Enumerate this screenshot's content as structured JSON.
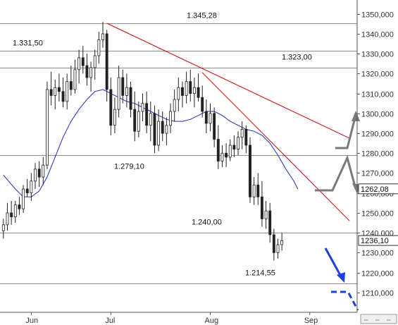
{
  "chart_data": {
    "type": "candlestick",
    "title": "",
    "xlabel": "",
    "ylabel": "",
    "ylim": [
      1200,
      1357
    ],
    "y_ticks": [
      1210,
      1220,
      1230,
      1240,
      1250,
      1260,
      1270,
      1280,
      1290,
      1300,
      1310,
      1320,
      1330,
      1340,
      1350
    ],
    "y_tick_labels": [
      "1210,000",
      "1220,000",
      "1230,000",
      "1240,000",
      "1250,000",
      "1260,000",
      "1270,000",
      "1280,000",
      "1290,000",
      "1300,000",
      "1310,000",
      "1320,000",
      "1330,000",
      "1340,000",
      "1350,000"
    ],
    "x_tick_labels": [
      "Jun",
      "Jul",
      "Aug",
      "Sep"
    ],
    "x_tick_positions": [
      7,
      27,
      52,
      77
    ],
    "grid": "horizontal levels only",
    "levels": [
      {
        "value": 1345.28,
        "label": "1.345,28"
      },
      {
        "value": 1331.5,
        "label": "1.331,50"
      },
      {
        "value": 1323.0,
        "label": "1.323,00"
      },
      {
        "value": 1279.1,
        "label": "1.279,10"
      },
      {
        "value": 1240.0,
        "label": "1.240,00"
      },
      {
        "value": 1214.55,
        "label": "1.214,55"
      }
    ],
    "current_price": {
      "value": 1236.1,
      "label": "1236,10"
    },
    "ma_price": {
      "value": 1262.08,
      "label": "1262,08"
    },
    "moving_average": [
      [
        0,
        1269
      ],
      [
        3,
        1262
      ],
      [
        5,
        1258
      ],
      [
        7,
        1258
      ],
      [
        9,
        1261
      ],
      [
        11,
        1268
      ],
      [
        13,
        1278
      ],
      [
        15,
        1288
      ],
      [
        17,
        1296
      ],
      [
        19,
        1302
      ],
      [
        21,
        1307
      ],
      [
        23,
        1311
      ],
      [
        25,
        1312
      ],
      [
        27,
        1310
      ],
      [
        29,
        1308
      ],
      [
        31,
        1306
      ],
      [
        33,
        1305
      ],
      [
        35,
        1303
      ],
      [
        37,
        1301
      ],
      [
        39,
        1299
      ],
      [
        41,
        1297
      ],
      [
        43,
        1296
      ],
      [
        45,
        1296
      ],
      [
        47,
        1297
      ],
      [
        49,
        1299
      ],
      [
        51,
        1301
      ],
      [
        53,
        1301
      ],
      [
        55,
        1299
      ],
      [
        57,
        1296
      ],
      [
        59,
        1294
      ],
      [
        61,
        1292
      ],
      [
        63,
        1291
      ],
      [
        65,
        1289
      ],
      [
        67,
        1285
      ],
      [
        69,
        1279
      ],
      [
        71,
        1272
      ],
      [
        73,
        1266
      ],
      [
        74,
        1262
      ]
    ],
    "trendlines": [
      {
        "from": [
          26,
          1345.3
        ],
        "to": [
          87,
          1287.5
        ],
        "color": "#cc0000"
      },
      {
        "from": [
          50,
          1320.5
        ],
        "to": [
          87,
          1246
        ],
        "color": "#cc0000"
      }
    ],
    "candles": [
      [
        1241,
        1247,
        1237,
        1244
      ],
      [
        1244,
        1255,
        1241,
        1250
      ],
      [
        1250,
        1256,
        1244,
        1248
      ],
      [
        1248,
        1256,
        1245,
        1254
      ],
      [
        1254,
        1258,
        1249,
        1252
      ],
      [
        1252,
        1264,
        1250,
        1262
      ],
      [
        1262,
        1267,
        1258,
        1260
      ],
      [
        1260,
        1270,
        1256,
        1266
      ],
      [
        1266,
        1275,
        1262,
        1272
      ],
      [
        1272,
        1276,
        1263,
        1268
      ],
      [
        1268,
        1278,
        1264,
        1274
      ],
      [
        1274,
        1316,
        1272,
        1312
      ],
      [
        1312,
        1321,
        1304,
        1309
      ],
      [
        1309,
        1317,
        1302,
        1313
      ],
      [
        1313,
        1320,
        1306,
        1311
      ],
      [
        1311,
        1318,
        1303,
        1306
      ],
      [
        1306,
        1320,
        1302,
        1316
      ],
      [
        1316,
        1324,
        1309,
        1312
      ],
      [
        1312,
        1327,
        1310,
        1322
      ],
      [
        1322,
        1332,
        1315,
        1328
      ],
      [
        1328,
        1334,
        1320,
        1324
      ],
      [
        1324,
        1330,
        1314,
        1318
      ],
      [
        1318,
        1326,
        1311,
        1323
      ],
      [
        1323,
        1332,
        1317,
        1329
      ],
      [
        1329,
        1341,
        1325,
        1337
      ],
      [
        1337,
        1346,
        1333,
        1340
      ],
      [
        1340,
        1342,
        1306,
        1312
      ],
      [
        1312,
        1318,
        1289,
        1294
      ],
      [
        1294,
        1308,
        1290,
        1302
      ],
      [
        1302,
        1324,
        1298,
        1318
      ],
      [
        1318,
        1322,
        1305,
        1309
      ],
      [
        1309,
        1320,
        1303,
        1313
      ],
      [
        1313,
        1316,
        1298,
        1302
      ],
      [
        1302,
        1311,
        1286,
        1291
      ],
      [
        1291,
        1306,
        1288,
        1301
      ],
      [
        1301,
        1310,
        1296,
        1305
      ],
      [
        1305,
        1311,
        1290,
        1294
      ],
      [
        1294,
        1306,
        1286,
        1300
      ],
      [
        1300,
        1304,
        1280,
        1284
      ],
      [
        1284,
        1302,
        1281,
        1296
      ],
      [
        1296,
        1301,
        1286,
        1290
      ],
      [
        1290,
        1298,
        1284,
        1294
      ],
      [
        1294,
        1305,
        1290,
        1301
      ],
      [
        1301,
        1312,
        1296,
        1307
      ],
      [
        1307,
        1318,
        1301,
        1313
      ],
      [
        1313,
        1316,
        1303,
        1309
      ],
      [
        1309,
        1321,
        1305,
        1316
      ],
      [
        1316,
        1322,
        1306,
        1310
      ],
      [
        1310,
        1318,
        1303,
        1313
      ],
      [
        1313,
        1320,
        1306,
        1308
      ],
      [
        1308,
        1314,
        1298,
        1301
      ],
      [
        1301,
        1307,
        1290,
        1295
      ],
      [
        1295,
        1305,
        1291,
        1300
      ],
      [
        1300,
        1303,
        1283,
        1287
      ],
      [
        1287,
        1294,
        1272,
        1276
      ],
      [
        1276,
        1284,
        1273,
        1280
      ],
      [
        1280,
        1285,
        1273,
        1278
      ],
      [
        1278,
        1287,
        1276,
        1284
      ],
      [
        1284,
        1289,
        1278,
        1282
      ],
      [
        1282,
        1291,
        1279,
        1288
      ],
      [
        1288,
        1296,
        1282,
        1292
      ],
      [
        1292,
        1294,
        1280,
        1284
      ],
      [
        1284,
        1288,
        1255,
        1258
      ],
      [
        1258,
        1268,
        1254,
        1264
      ],
      [
        1264,
        1270,
        1254,
        1258
      ],
      [
        1258,
        1266,
        1243,
        1247
      ],
      [
        1247,
        1256,
        1242,
        1251
      ],
      [
        1251,
        1255,
        1235,
        1239
      ],
      [
        1239,
        1242,
        1226,
        1230
      ],
      [
        1230,
        1237,
        1227,
        1234
      ],
      [
        1234,
        1240,
        1231,
        1236
      ]
    ],
    "candle_start_index": 0,
    "x_max_index": 87
  }
}
